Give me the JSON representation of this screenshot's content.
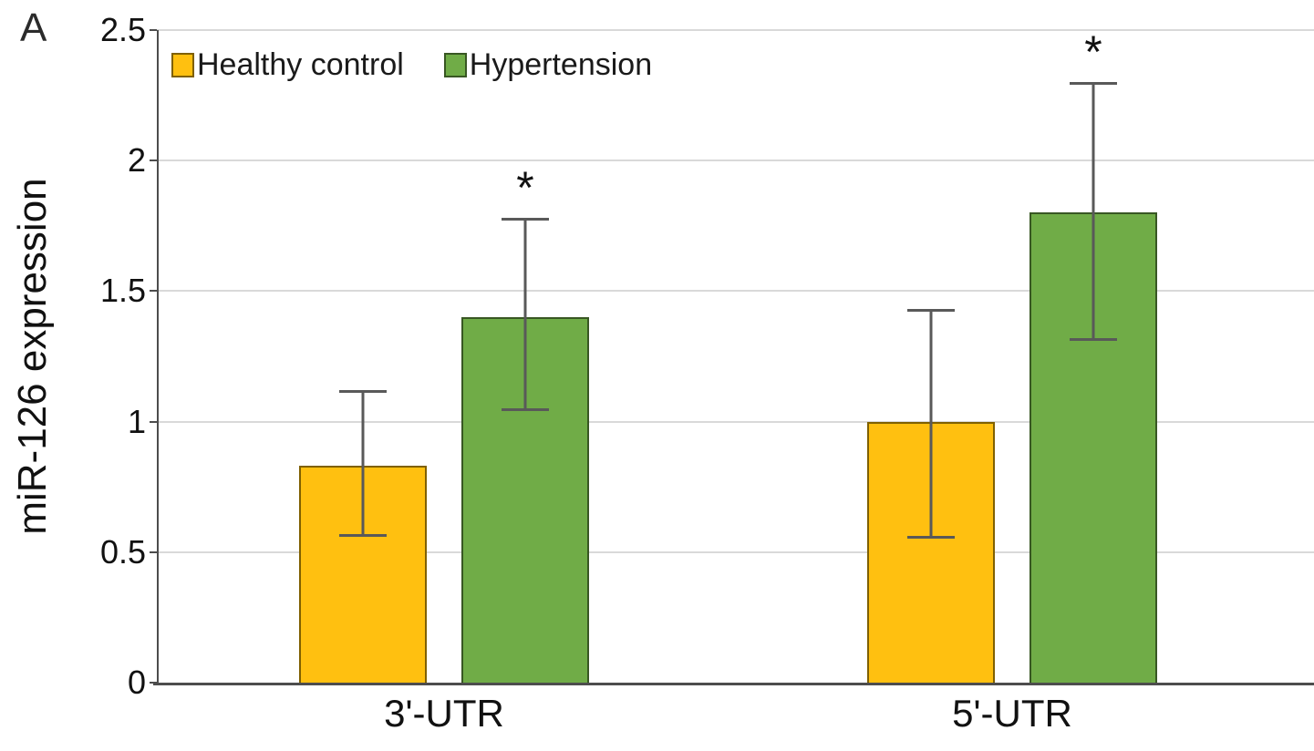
{
  "panel_label": "A",
  "chart_data": {
    "type": "bar",
    "title": "",
    "xlabel": "",
    "ylabel": "miR-126 expression",
    "categories": [
      "3'-UTR",
      "5'-UTR"
    ],
    "ylim": [
      0,
      2.5
    ],
    "yticks": [
      0,
      0.5,
      1,
      1.5,
      2,
      2.5
    ],
    "ytick_labels": [
      "0",
      "0.5",
      "1",
      "1.5",
      "2",
      "2.5"
    ],
    "grid": true,
    "legend_position": "top-left-inside",
    "significance_marker": "*",
    "series": [
      {
        "name": "Healthy control",
        "fill": "#FFC010",
        "border": "#7F6000",
        "values": [
          0.83,
          1.0
        ],
        "error_low": [
          0.56,
          0.55
        ],
        "error_high": [
          1.12,
          1.43
        ],
        "significance": [
          "",
          ""
        ]
      },
      {
        "name": "Hypertension",
        "fill": "#70AC47",
        "border": "#385723",
        "values": [
          1.4,
          1.8
        ],
        "error_low": [
          1.04,
          1.31
        ],
        "error_high": [
          1.78,
          2.3
        ],
        "significance": [
          "*",
          "*"
        ]
      }
    ],
    "colors": {
      "error_bar": "#595959",
      "gridline": "#D9D9D9",
      "axis": "#4d4d4d",
      "text": "#111111"
    }
  }
}
